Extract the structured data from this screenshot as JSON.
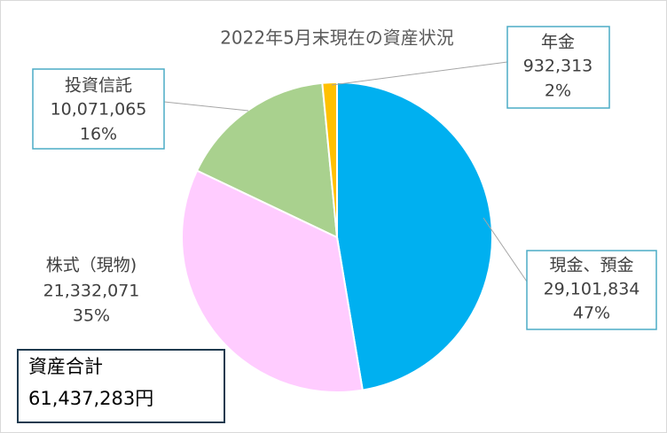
{
  "chart_data": {
    "type": "pie",
    "title": "2022年5月末現在の資産状況",
    "categories": [
      "現金、預金",
      "株式（現物)",
      "投資信託",
      "年金"
    ],
    "values": [
      29101834,
      21332071,
      10071065,
      932313
    ],
    "value_labels": [
      "29,101,834",
      "21,332,071",
      "10,071,065",
      "932,313"
    ],
    "percents": [
      47,
      35,
      16,
      2
    ],
    "percent_labels": [
      "47%",
      "35%",
      "16%",
      "2%"
    ],
    "colors": [
      "#00b0f0",
      "#ffccff",
      "#a9d18e",
      "#ffc000"
    ],
    "total_label": "資産合計",
    "total_text": "61,437,283円"
  }
}
